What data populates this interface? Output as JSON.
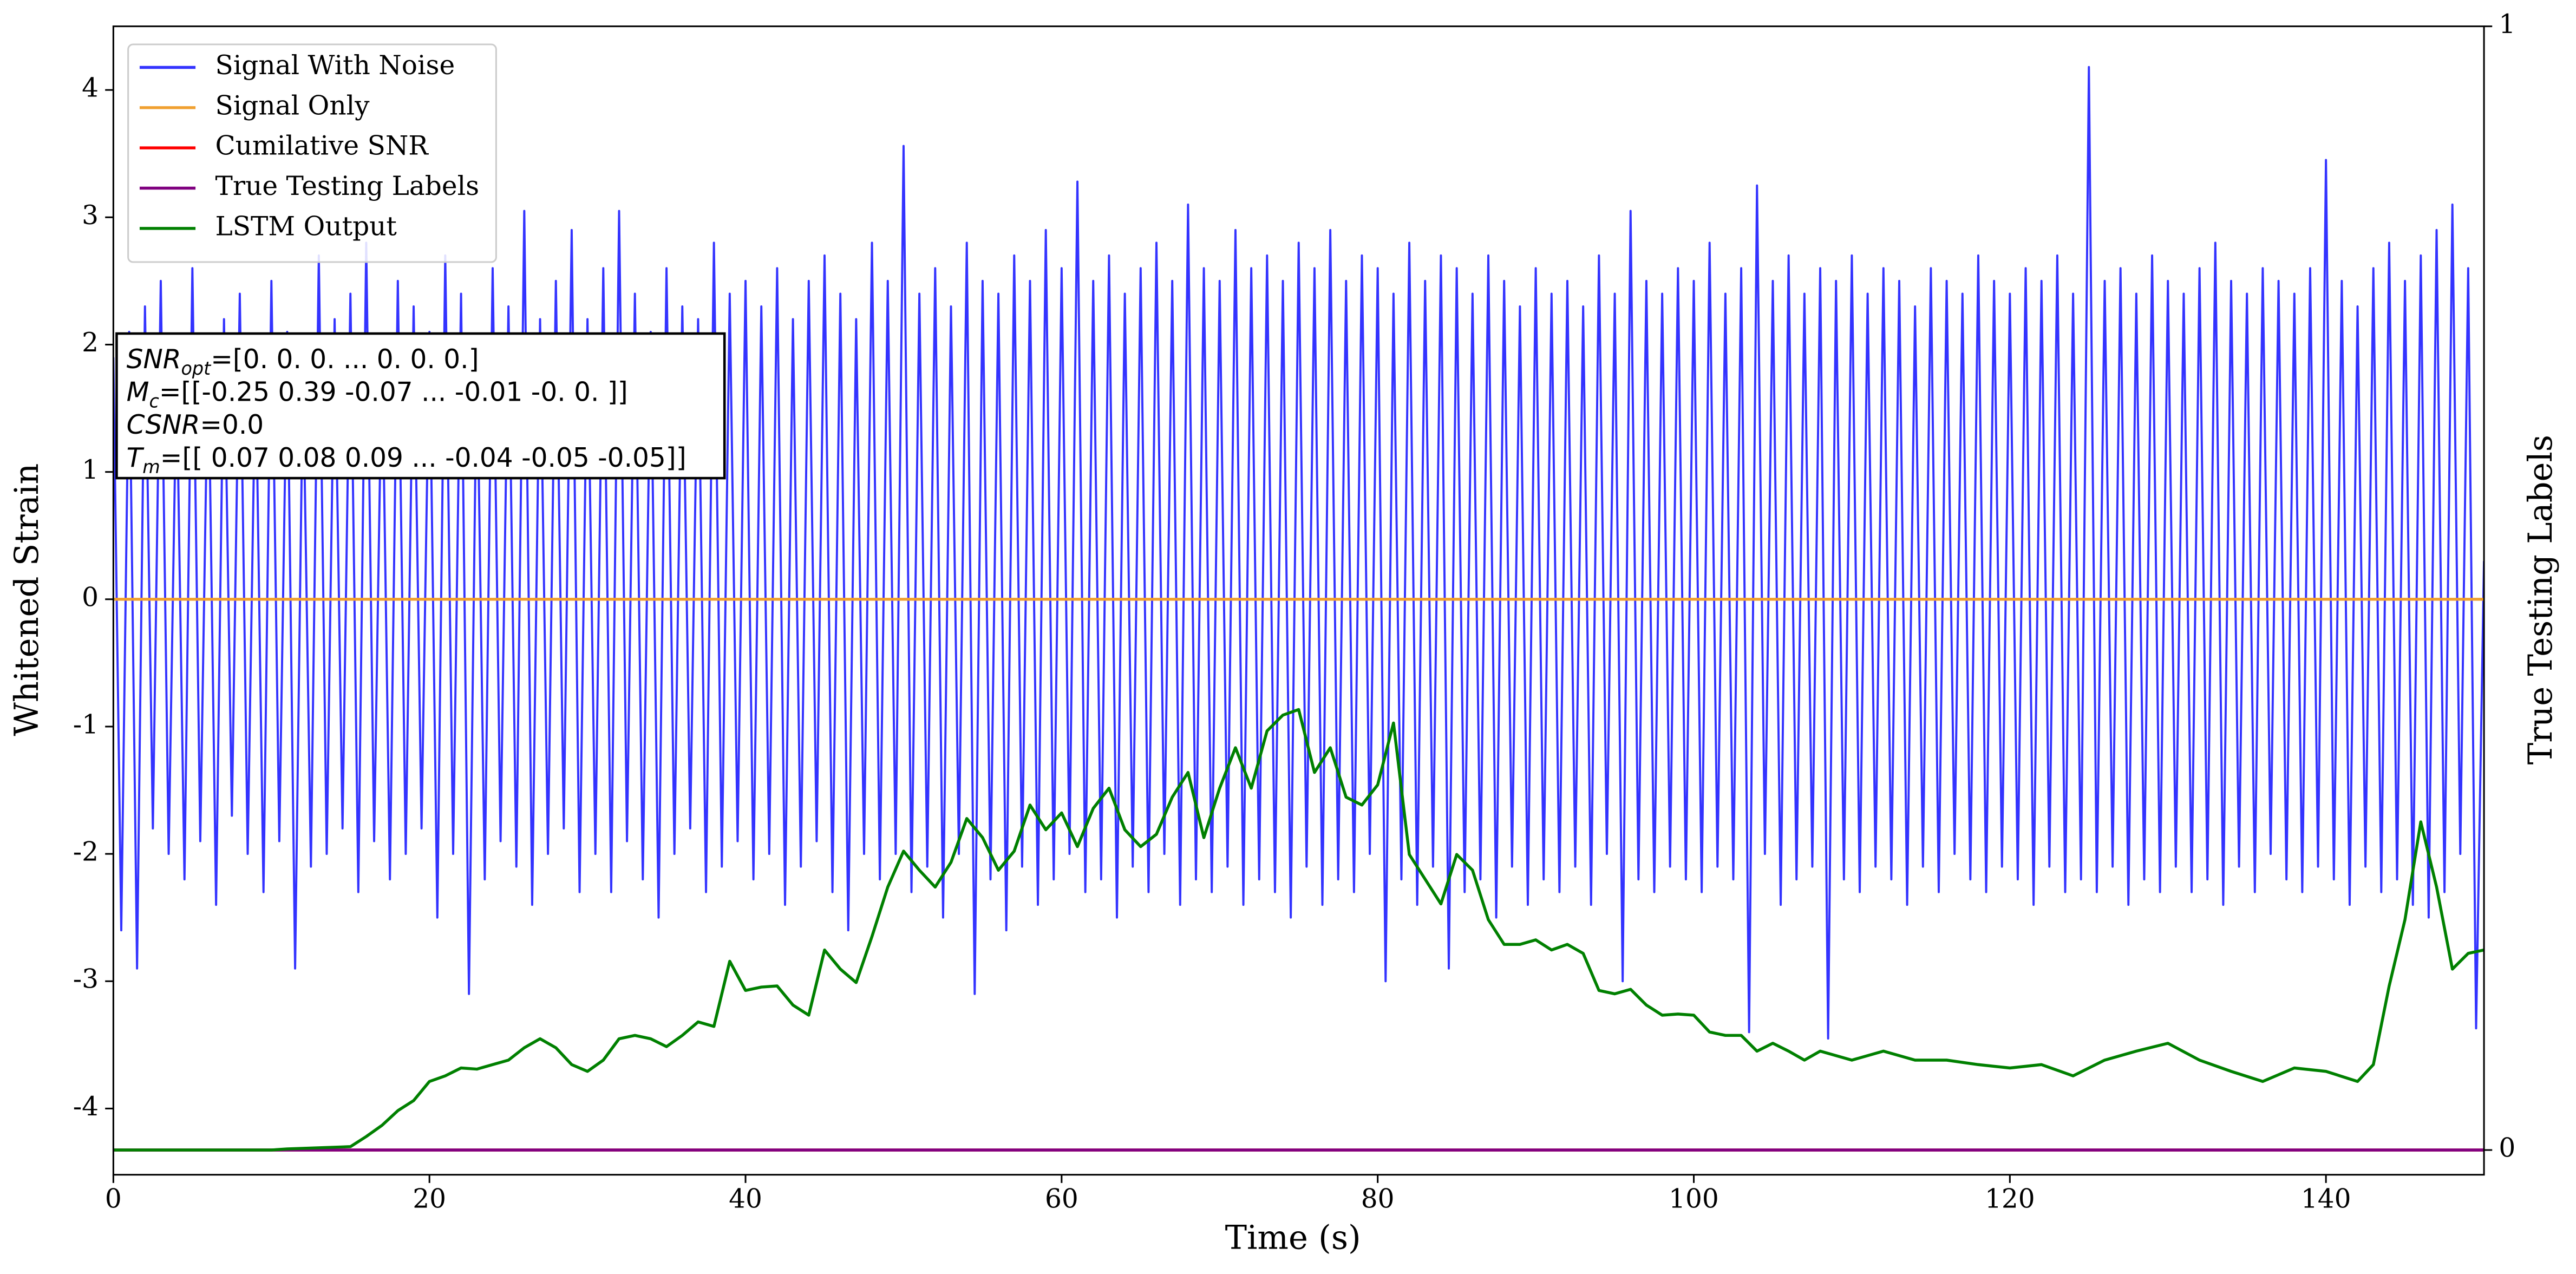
{
  "chart_data": {
    "type": "line",
    "xlabel": "Time (s)",
    "ylabel": "Whitened Strain",
    "y2label": "True Testing Labels",
    "xlim": [
      0,
      150
    ],
    "ylim": [
      -4.52,
      4.5
    ],
    "y2lim": [
      -0.022,
      1
    ],
    "xticks": [
      0,
      20,
      40,
      60,
      80,
      100,
      120,
      140
    ],
    "yticks": [
      -4,
      -3,
      -2,
      -1,
      0,
      1,
      2,
      3,
      4
    ],
    "y2ticks": [
      0,
      1
    ],
    "legend": "upper left",
    "annotation": [
      {
        "symbol": "SNR",
        "sub": "opt",
        "text": "=[0. 0. 0. ... 0. 0. 0.]"
      },
      {
        "symbol": "M",
        "sub": "c",
        "text": "=[[-0.25  0.39 -0.07 ... -0.01 -0.    0.  ]]"
      },
      {
        "symbol": "CSNR",
        "text": "=0.0"
      },
      {
        "symbol": "T",
        "sub": "m",
        "text": "=[[ 0.07  0.08  0.09 ... -0.04 -0.05 -0.05]]"
      }
    ],
    "series": [
      {
        "name": "Signal With Noise",
        "color": "#3333ff",
        "x": [
          0,
          0.5,
          1,
          1.5,
          2,
          2.5,
          3,
          3.5,
          4,
          4.5,
          5,
          5.5,
          6,
          6.5,
          7,
          7.5,
          8,
          8.5,
          9,
          9.5,
          10,
          10.5,
          11,
          11.5,
          12,
          12.5,
          13,
          13.5,
          14,
          14.5,
          15,
          15.5,
          16,
          16.5,
          17,
          17.5,
          18,
          18.5,
          19,
          19.5,
          20,
          20.5,
          21,
          21.5,
          22,
          22.5,
          23,
          23.5,
          24,
          24.5,
          25,
          25.5,
          26,
          26.5,
          27,
          27.5,
          28,
          28.5,
          29,
          29.5,
          30,
          30.5,
          31,
          31.5,
          32,
          32.5,
          33,
          33.5,
          34,
          34.5,
          35,
          35.5,
          36,
          36.5,
          37,
          37.5,
          38,
          38.5,
          39,
          39.5,
          40,
          40.5,
          41,
          41.5,
          42,
          42.5,
          43,
          43.5,
          44,
          44.5,
          45,
          45.5,
          46,
          46.5,
          47,
          47.5,
          48,
          48.5,
          49,
          49.5,
          50,
          50.5,
          51,
          51.5,
          52,
          52.5,
          53,
          53.5,
          54,
          54.5,
          55,
          55.5,
          56,
          56.5,
          57,
          57.5,
          58,
          58.5,
          59,
          59.5,
          60,
          60.5,
          61,
          61.5,
          62,
          62.5,
          63,
          63.5,
          64,
          64.5,
          65,
          65.5,
          66,
          66.5,
          67,
          67.5,
          68,
          68.5,
          69,
          69.5,
          70,
          70.5,
          71,
          71.5,
          72,
          72.5,
          73,
          73.5,
          74,
          74.5,
          75,
          75.5,
          76,
          76.5,
          77,
          77.5,
          78,
          78.5,
          79,
          79.5,
          80,
          80.5,
          81,
          81.5,
          82,
          82.5,
          83,
          83.5,
          84,
          84.5,
          85,
          85.5,
          86,
          86.5,
          87,
          87.5,
          88,
          88.5,
          89,
          89.5,
          90,
          90.5,
          91,
          91.5,
          92,
          92.5,
          93,
          93.5,
          94,
          94.5,
          95,
          95.5,
          96,
          96.5,
          97,
          97.5,
          98,
          98.5,
          99,
          99.5,
          100,
          100.5,
          101,
          101.5,
          102,
          102.5,
          103,
          103.5,
          104,
          104.5,
          105,
          105.5,
          106,
          106.5,
          107,
          107.5,
          108,
          108.5,
          109,
          109.5,
          110,
          110.5,
          111,
          111.5,
          112,
          112.5,
          113,
          113.5,
          114,
          114.5,
          115,
          115.5,
          116,
          116.5,
          117,
          117.5,
          118,
          118.5,
          119,
          119.5,
          120,
          120.5,
          121,
          121.5,
          122,
          122.5,
          123,
          123.5,
          124,
          124.5,
          125,
          125.5,
          126,
          126.5,
          127,
          127.5,
          128,
          128.5,
          129,
          129.5,
          130,
          130.5,
          131,
          131.5,
          132,
          132.5,
          133,
          133.5,
          134,
          134.5,
          135,
          135.5,
          136,
          136.5,
          137,
          137.5,
          138,
          138.5,
          139,
          139.5,
          140,
          140.5,
          141,
          141.5,
          142,
          142.5,
          143,
          143.5,
          144,
          144.5,
          145,
          145.5,
          146,
          146.5,
          147,
          147.5,
          148,
          148.5,
          149,
          149.5,
          150
        ],
        "values": [
          1.9,
          -2.6,
          2.1,
          -2.9,
          2.3,
          -1.8,
          2.5,
          -2.0,
          1.8,
          -2.2,
          2.6,
          -1.9,
          2.0,
          -2.4,
          2.2,
          -1.7,
          2.4,
          -2.0,
          1.9,
          -2.3,
          2.5,
          -1.9,
          2.1,
          -2.9,
          1.8,
          -2.1,
          2.7,
          -2.0,
          2.2,
          -1.8,
          2.4,
          -2.3,
          2.8,
          -1.9,
          2.0,
          -2.2,
          2.5,
          -2.0,
          2.3,
          -1.8,
          2.1,
          -2.5,
          2.7,
          -2.0,
          2.4,
          -3.1,
          2.0,
          -2.2,
          2.6,
          -1.9,
          2.3,
          -2.1,
          3.05,
          -2.4,
          2.2,
          -2.0,
          2.5,
          -1.8,
          2.9,
          -2.3,
          2.2,
          -2.0,
          2.6,
          -2.3,
          3.05,
          -1.9,
          2.4,
          -2.2,
          2.1,
          -2.5,
          2.6,
          -2.0,
          2.3,
          -1.8,
          2.2,
          -2.3,
          2.8,
          -2.1,
          2.4,
          -1.9,
          2.5,
          -2.2,
          2.3,
          -2.0,
          2.6,
          -2.4,
          2.2,
          -2.1,
          2.5,
          -1.9,
          2.7,
          -2.3,
          2.4,
          -2.6,
          2.2,
          -2.0,
          2.8,
          -2.2,
          2.5,
          -2.0,
          3.56,
          -2.3,
          2.4,
          -2.1,
          2.6,
          -2.5,
          2.3,
          -2.0,
          2.8,
          -3.1,
          2.5,
          -2.2,
          2.4,
          -2.6,
          2.7,
          -2.1,
          2.5,
          -2.4,
          2.9,
          -2.2,
          2.6,
          -2.0,
          3.28,
          -2.3,
          2.5,
          -2.2,
          2.7,
          -2.5,
          2.4,
          -2.1,
          2.6,
          -2.3,
          2.8,
          -2.0,
          2.5,
          -2.4,
          3.1,
          -2.2,
          2.6,
          -2.3,
          2.5,
          -2.1,
          2.9,
          -2.4,
          2.6,
          -2.2,
          2.7,
          -2.3,
          2.5,
          -2.5,
          2.8,
          -2.1,
          2.6,
          -2.4,
          2.9,
          -2.2,
          2.5,
          -2.3,
          2.7,
          -2.0,
          2.6,
          -3.0,
          2.4,
          -2.2,
          2.8,
          -2.4,
          2.5,
          -2.1,
          2.7,
          -2.9,
          2.6,
          -2.3,
          2.4,
          -2.2,
          2.7,
          -2.5,
          2.5,
          -2.1,
          2.3,
          -2.4,
          2.6,
          -2.2,
          2.4,
          -2.3,
          2.5,
          -2.1,
          2.3,
          -2.4,
          2.7,
          -2.0,
          2.4,
          -3.0,
          3.05,
          -2.2,
          2.5,
          -2.3,
          2.4,
          -2.1,
          2.6,
          -2.2,
          2.5,
          -2.3,
          2.8,
          -2.1,
          2.4,
          -2.2,
          2.6,
          -3.4,
          3.25,
          -2.0,
          2.5,
          -2.4,
          2.7,
          -2.2,
          2.4,
          -2.1,
          2.6,
          -3.45,
          2.5,
          -2.2,
          2.7,
          -2.3,
          2.4,
          -2.1,
          2.6,
          -2.2,
          2.5,
          -2.4,
          2.3,
          -2.1,
          2.6,
          -2.3,
          2.5,
          -2.0,
          2.4,
          -2.2,
          2.7,
          -2.3,
          2.5,
          -2.1,
          2.4,
          -2.2,
          2.6,
          -2.4,
          2.5,
          -2.1,
          2.7,
          -2.3,
          2.4,
          -2.2,
          4.18,
          -2.3,
          2.5,
          -2.1,
          2.6,
          -2.4,
          2.4,
          -2.2,
          2.7,
          -2.3,
          2.5,
          -2.1,
          2.4,
          -2.3,
          2.6,
          -2.2,
          2.8,
          -2.4,
          2.5,
          -2.1,
          2.4,
          -2.3,
          2.6,
          -2.0,
          2.5,
          -2.2,
          2.4,
          -2.3,
          2.6,
          -2.1,
          3.45,
          -2.2,
          2.5,
          -2.4,
          2.3,
          -2.1,
          2.6,
          -2.3,
          2.8,
          -2.2,
          2.5,
          -2.4,
          2.7,
          -2.5,
          2.9,
          -2.3,
          3.1,
          -2.0,
          2.6,
          -3.37,
          0.3
        ]
      },
      {
        "name": "Signal Only",
        "color": "#f0a030",
        "x": [
          0,
          150
        ],
        "values": [
          0,
          0
        ]
      },
      {
        "name": "Cumilative SNR",
        "color": "#ff0000",
        "axis": "y2",
        "x": [
          0,
          150
        ],
        "values": [
          0,
          0
        ]
      },
      {
        "name": "True Testing Labels",
        "color": "#800080",
        "axis": "y2",
        "x": [
          0,
          150
        ],
        "values": [
          0,
          0
        ]
      },
      {
        "name": "LSTM Output",
        "color": "#008000",
        "axis": "y2",
        "x": [
          0,
          10,
          11,
          15,
          16,
          17,
          18,
          19,
          20,
          21,
          22,
          23,
          24,
          25,
          26,
          27,
          28,
          29,
          30,
          31,
          32,
          33,
          34,
          35,
          36,
          37,
          38,
          39,
          40,
          41,
          42,
          43,
          44,
          45,
          46,
          47,
          48,
          49,
          50,
          51,
          52,
          53,
          54,
          55,
          56,
          57,
          58,
          59,
          60,
          61,
          62,
          63,
          64,
          65,
          66,
          67,
          68,
          69,
          70,
          71,
          72,
          73,
          74,
          75,
          76,
          77,
          78,
          79,
          80,
          81,
          82,
          83,
          84,
          85,
          86,
          87,
          88,
          89,
          90,
          91,
          92,
          93,
          94,
          95,
          96,
          97,
          98,
          99,
          100,
          101,
          102,
          103,
          104,
          105,
          106,
          107,
          108,
          110,
          112,
          114,
          116,
          118,
          120,
          122,
          124,
          126,
          128,
          130,
          132,
          134,
          136,
          138,
          140,
          142,
          143,
          144,
          145,
          146,
          147,
          148,
          149,
          150
        ],
        "values": [
          0,
          0,
          0.001,
          0.003,
          0.012,
          0.022,
          0.035,
          0.044,
          0.061,
          0.066,
          0.073,
          0.072,
          0.076,
          0.08,
          0.091,
          0.099,
          0.091,
          0.076,
          0.07,
          0.08,
          0.099,
          0.102,
          0.099,
          0.092,
          0.102,
          0.114,
          0.11,
          0.168,
          0.142,
          0.145,
          0.146,
          0.129,
          0.12,
          0.178,
          0.161,
          0.149,
          0.19,
          0.234,
          0.266,
          0.249,
          0.234,
          0.256,
          0.295,
          0.278,
          0.249,
          0.266,
          0.307,
          0.285,
          0.3,
          0.27,
          0.304,
          0.322,
          0.285,
          0.27,
          0.281,
          0.314,
          0.336,
          0.278,
          0.322,
          0.358,
          0.322,
          0.373,
          0.387,
          0.392,
          0.336,
          0.358,
          0.314,
          0.307,
          0.325,
          0.38,
          0.263,
          0.241,
          0.219,
          0.263,
          0.249,
          0.205,
          0.183,
          0.183,
          0.187,
          0.178,
          0.183,
          0.175,
          0.142,
          0.139,
          0.143,
          0.129,
          0.12,
          0.121,
          0.12,
          0.105,
          0.102,
          0.102,
          0.088,
          0.095,
          0.088,
          0.08,
          0.088,
          0.08,
          0.088,
          0.08,
          0.08,
          0.076,
          0.073,
          0.076,
          0.066,
          0.08,
          0.088,
          0.095,
          0.08,
          0.07,
          0.061,
          0.073,
          0.07,
          0.061,
          0.076,
          0.146,
          0.205,
          0.292,
          0.234,
          0.161,
          0.175,
          0.178
        ]
      }
    ]
  }
}
